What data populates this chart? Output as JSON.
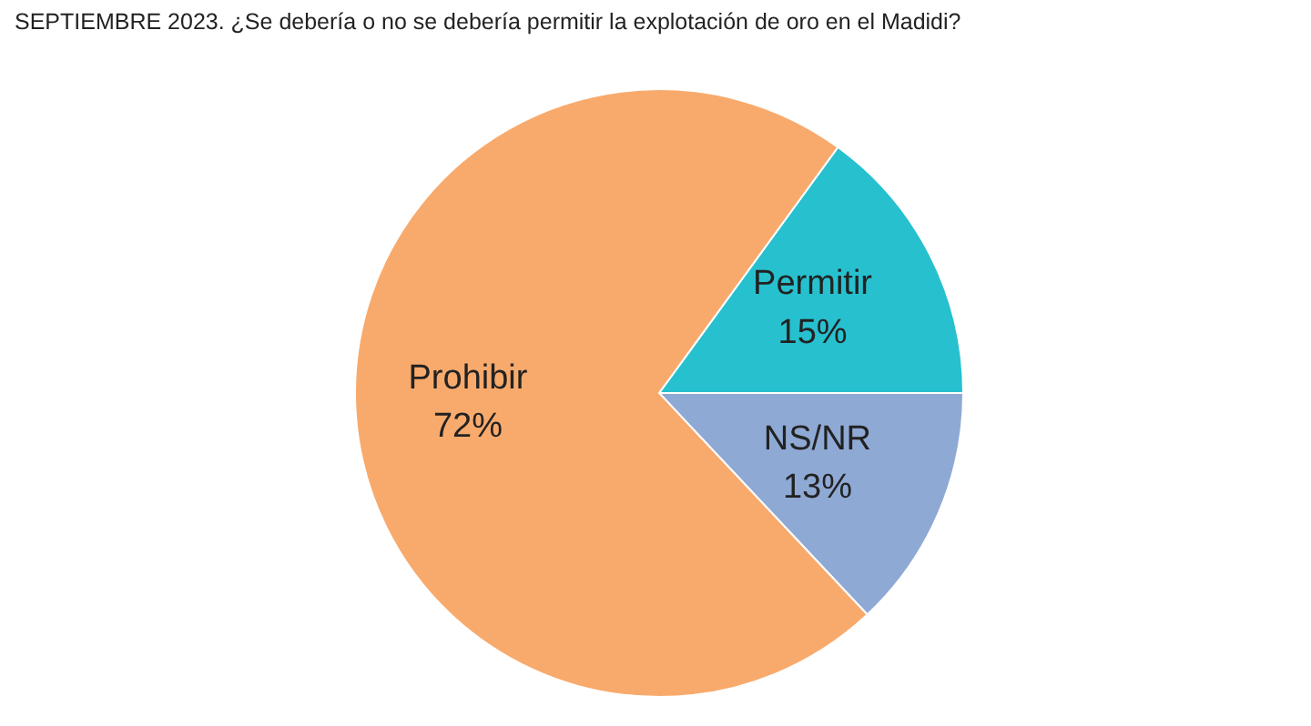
{
  "chart_data": {
    "type": "pie",
    "title": "SEPTIEMBRE 2023. ¿Se debería o no se debería permitir la explotación de oro en el Madidi?",
    "categories": [
      "Permitir",
      "NS/NR",
      "Prohibir"
    ],
    "values": [
      15,
      13,
      72
    ],
    "value_labels": [
      "15%",
      "13%",
      "72%"
    ],
    "colors": [
      "#27c0cf",
      "#8fa9d5",
      "#f8aa6c"
    ],
    "legend": false
  }
}
